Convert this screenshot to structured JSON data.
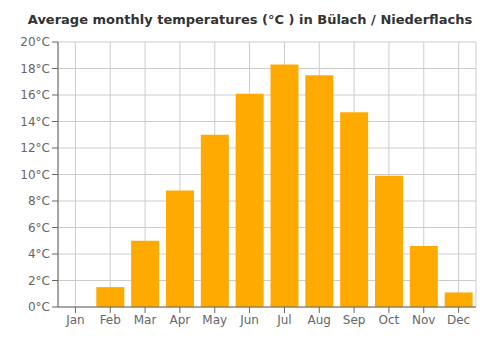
{
  "chart_data": {
    "type": "bar",
    "title": "Average monthly temperatures (°C ) in Bülach / Niederflachs",
    "categories": [
      "Jan",
      "Feb",
      "Mar",
      "Apr",
      "May",
      "Jun",
      "Jul",
      "Aug",
      "Sep",
      "Oct",
      "Nov",
      "Dec"
    ],
    "values": [
      0.0,
      1.5,
      5.0,
      8.8,
      13.0,
      16.1,
      18.3,
      17.5,
      14.7,
      9.9,
      4.6,
      1.1
    ],
    "color": "#FFAA00",
    "ylim": [
      0,
      20
    ],
    "yticks": [
      {
        "value": 0,
        "label": "0°C"
      },
      {
        "value": 2,
        "label": "2°C"
      },
      {
        "value": 4,
        "label": "4°C"
      },
      {
        "value": 6,
        "label": "6°C"
      },
      {
        "value": 8,
        "label": "8°C"
      },
      {
        "value": 10,
        "label": "10°C"
      },
      {
        "value": 12,
        "label": "12°C"
      },
      {
        "value": 14,
        "label": "14°C"
      },
      {
        "value": 16,
        "label": "16°C"
      },
      {
        "value": 18,
        "label": "18°C"
      },
      {
        "value": 20,
        "label": "20°C"
      }
    ],
    "grid": true
  }
}
